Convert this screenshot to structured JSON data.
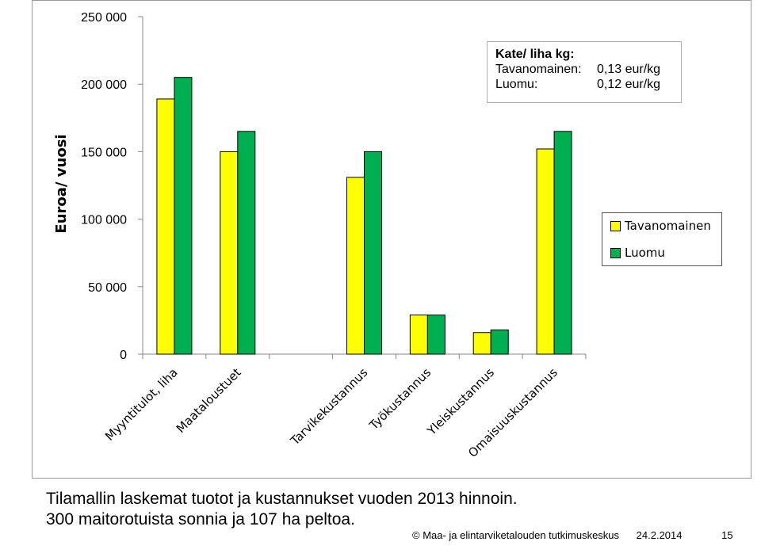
{
  "chart_data": {
    "type": "bar",
    "ylabel": "Euroa/ vuosi",
    "ylim": [
      0,
      250000
    ],
    "yticks": [
      "0",
      "50 000",
      "100 000",
      "150 000",
      "200 000",
      "250 000"
    ],
    "ytick_values": [
      0,
      50000,
      100000,
      150000,
      200000,
      250000
    ],
    "categories": [
      "Myyntitulot, liha",
      "Maataloustuet",
      "",
      "Tarvikekustannus",
      "Työkustannus",
      "Yleiskustannus",
      "Omaisuuskustannus"
    ],
    "series": [
      {
        "name": "Tavanomainen",
        "color": "#ffff00",
        "values": [
          189000,
          150000,
          null,
          131000,
          29000,
          16000,
          152000
        ]
      },
      {
        "name": "Luomu",
        "color": "#00b050",
        "values": [
          205000,
          165000,
          null,
          150000,
          29000,
          18000,
          165000
        ]
      }
    ],
    "grid": false,
    "legend_position": "right"
  },
  "info_box": {
    "title": "Kate/ liha kg:",
    "rows": [
      {
        "label": "Tavanomainen:",
        "value": "0,13 eur/kg"
      },
      {
        "label": "Luomu:",
        "value": "0,12 eur/kg"
      }
    ]
  },
  "caption": {
    "line1": "Tilamallin laskemat tuotot ja kustannukset vuoden 2013 hinnoin.",
    "line2": "300 maitorotuista sonnia ja 107 ha peltoa."
  },
  "footer": {
    "copyright": "© Maa- ja elintarviketalouden tutkimuskeskus",
    "date": "24.2.2014",
    "page": "15"
  }
}
